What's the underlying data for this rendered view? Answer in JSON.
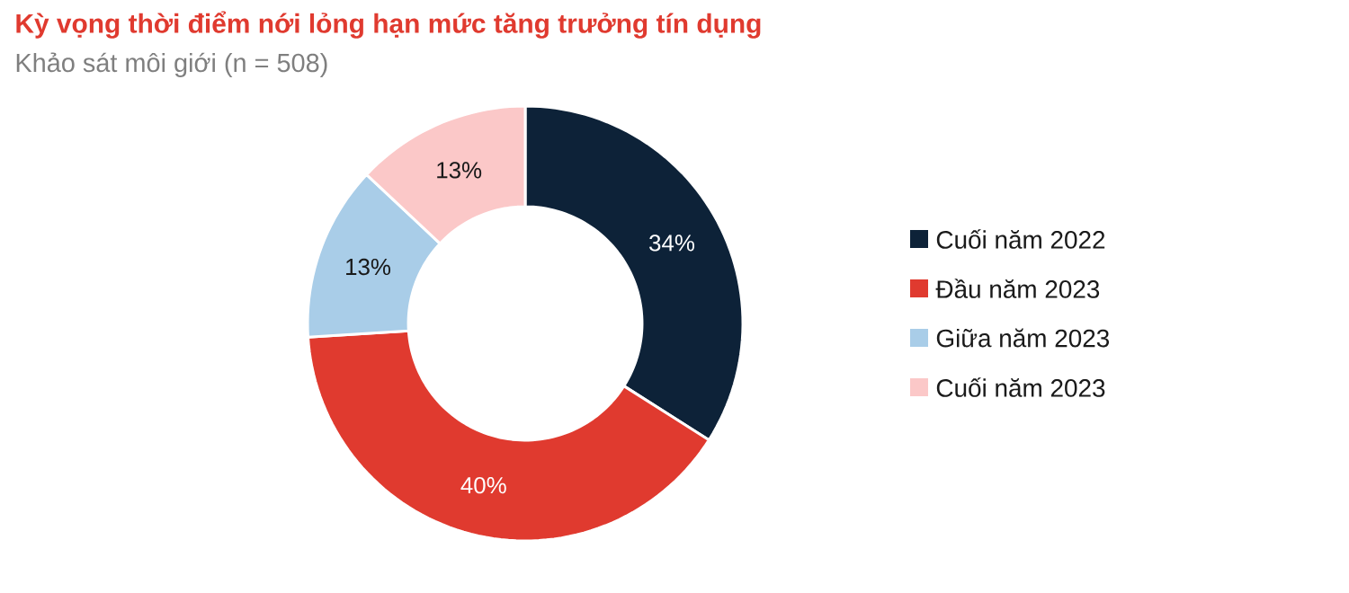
{
  "chart_data": {
    "type": "donut",
    "title": "Kỳ vọng thời điểm nới lỏng hạn mức tăng trưởng tín dụng",
    "subtitle": "Khảo sát môi giới (n = 508)",
    "categories": [
      "Cuối năm 2022",
      "Đầu năm 2023",
      "Giữa năm 2023",
      "Cuối năm 2023"
    ],
    "values": [
      34,
      40,
      13,
      13
    ],
    "colors": [
      "#0d2238",
      "#e03a2f",
      "#a9cde8",
      "#fbc8c8"
    ],
    "value_labels": [
      "34%",
      "40%",
      "13%",
      "13%"
    ],
    "legend": "right"
  }
}
